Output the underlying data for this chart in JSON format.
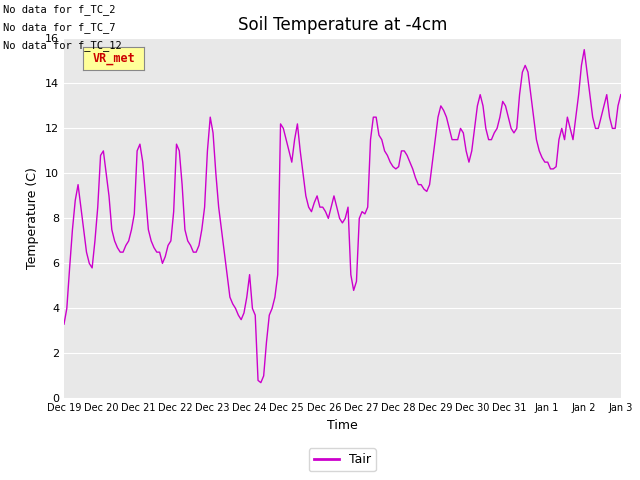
{
  "title": "Soil Temperature at -4cm",
  "xlabel": "Time",
  "ylabel": "Temperature (C)",
  "ylim": [
    0,
    16
  ],
  "yticks": [
    0,
    2,
    4,
    6,
    8,
    10,
    12,
    14,
    16
  ],
  "line_color": "#cc00cc",
  "legend_label": "Tair",
  "no_data_texts": [
    "No data for f_TC_2",
    "No data for f_TC_7",
    "No data for f_TC_12"
  ],
  "vr_met_label": "VR_met",
  "vr_met_bg": "#ffff99",
  "vr_met_fg": "#cc0000",
  "x_tick_labels": [
    "Dec 19",
    "Dec 20",
    "Dec 21",
    "Dec 22",
    "Dec 23",
    "Dec 24",
    "Dec 25",
    "Dec 26",
    "Dec 27",
    "Dec 28",
    "Dec 29",
    "Dec 30",
    "Dec 31",
    "Jan 1",
    "Jan 2",
    "Jan 3"
  ],
  "x_tick_positions": [
    0,
    1,
    2,
    3,
    4,
    5,
    6,
    7,
    8,
    9,
    10,
    11,
    12,
    13,
    14,
    15
  ],
  "data_y": [
    3.3,
    4.0,
    5.8,
    7.5,
    8.8,
    9.5,
    8.5,
    7.5,
    6.5,
    6.0,
    5.8,
    7.0,
    8.5,
    10.8,
    11.0,
    10.0,
    9.0,
    7.5,
    7.0,
    6.7,
    6.5,
    6.5,
    6.8,
    7.0,
    7.5,
    8.2,
    11.0,
    11.3,
    10.5,
    9.0,
    7.5,
    7.0,
    6.7,
    6.5,
    6.5,
    6.0,
    6.3,
    6.8,
    7.0,
    8.3,
    11.3,
    11.0,
    9.5,
    7.5,
    7.0,
    6.8,
    6.5,
    6.5,
    6.8,
    7.5,
    8.5,
    11.0,
    12.5,
    11.8,
    10.0,
    8.5,
    7.5,
    6.5,
    5.5,
    4.5,
    4.2,
    4.0,
    3.7,
    3.5,
    3.8,
    4.5,
    5.5,
    4.0,
    3.7,
    0.8,
    0.7,
    1.0,
    2.5,
    3.7,
    4.0,
    4.5,
    5.5,
    12.2,
    12.0,
    11.5,
    11.0,
    10.5,
    11.5,
    12.2,
    11.0,
    10.0,
    9.0,
    8.5,
    8.3,
    8.7,
    9.0,
    8.5,
    8.5,
    8.3,
    8.0,
    8.5,
    9.0,
    8.5,
    8.0,
    7.8,
    8.0,
    8.5,
    5.5,
    4.8,
    5.2,
    8.0,
    8.3,
    8.2,
    8.5,
    11.5,
    12.5,
    12.5,
    11.7,
    11.5,
    11.0,
    10.8,
    10.5,
    10.3,
    10.2,
    10.3,
    11.0,
    11.0,
    10.8,
    10.5,
    10.2,
    9.8,
    9.5,
    9.5,
    9.3,
    9.2,
    9.5,
    10.5,
    11.5,
    12.5,
    13.0,
    12.8,
    12.5,
    12.0,
    11.5,
    11.5,
    11.5,
    12.0,
    11.8,
    11.0,
    10.5,
    11.0,
    12.0,
    13.0,
    13.5,
    13.0,
    12.0,
    11.5,
    11.5,
    11.8,
    12.0,
    12.5,
    13.2,
    13.0,
    12.5,
    12.0,
    11.8,
    12.0,
    13.5,
    14.5,
    14.8,
    14.5,
    13.5,
    12.5,
    11.5,
    11.0,
    10.7,
    10.5,
    10.5,
    10.2,
    10.2,
    10.3,
    11.5,
    12.0,
    11.5,
    12.5,
    12.0,
    11.5,
    12.5,
    13.5,
    14.8,
    15.5,
    14.5,
    13.5,
    12.5,
    12.0,
    12.0,
    12.5,
    13.0,
    13.5,
    12.5,
    12.0,
    12.0,
    13.0,
    13.5
  ]
}
